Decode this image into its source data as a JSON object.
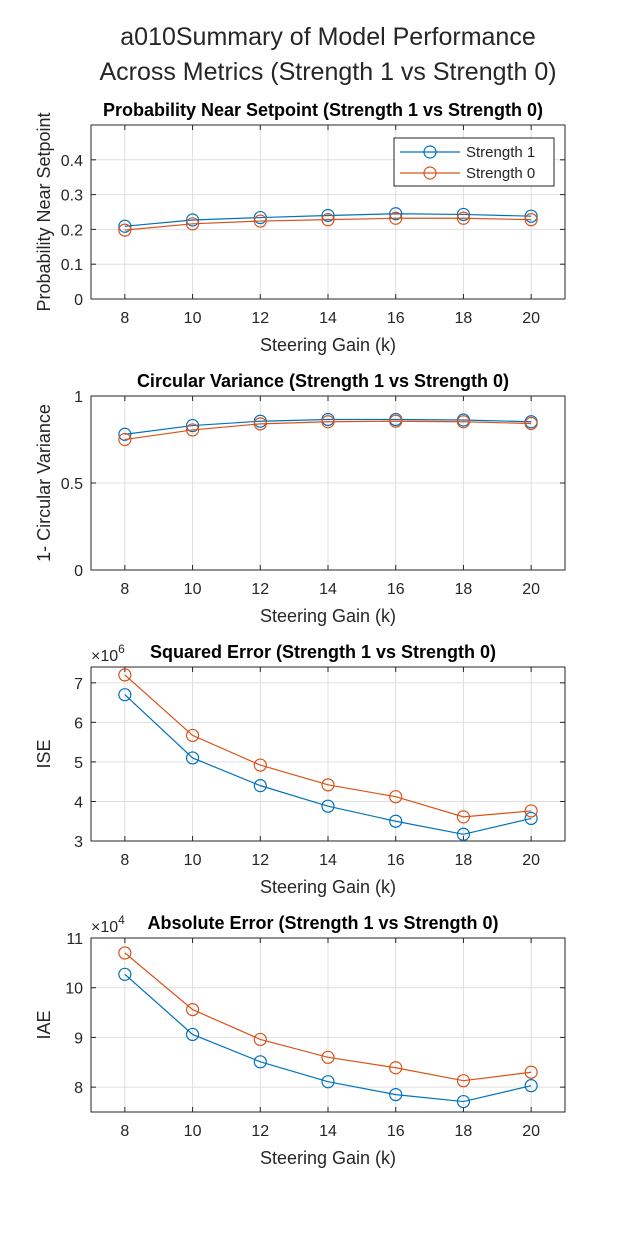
{
  "figure_title_line1": "a010Summary of Model Performance",
  "figure_title_line2": "Across Metrics (Strength 1 vs Strength 0)",
  "colors": {
    "strength1": "#0072BD",
    "strength0": "#D95319",
    "grid": "#dfdfdf",
    "axis": "#262626"
  },
  "chart_data": [
    {
      "type": "line",
      "title": "Probability Near Setpoint (Strength 1 vs Strength 0)",
      "xlabel": "Steering Gain (k)",
      "ylabel": "Probability Near Setpoint",
      "x": [
        8,
        10,
        12,
        14,
        16,
        18,
        20
      ],
      "xlim": [
        7,
        21
      ],
      "ylim": [
        0,
        0.5
      ],
      "xticks": [
        8,
        10,
        12,
        14,
        16,
        18,
        20
      ],
      "yticks": [
        0,
        0.1,
        0.2,
        0.3,
        0.4
      ],
      "ytick_labels": [
        "0",
        "0.1",
        "0.2",
        "0.3",
        "0.4"
      ],
      "exponent": "",
      "grid": true,
      "legend": "top-right",
      "series": [
        {
          "name": "Strength 1",
          "values": [
            0.209,
            0.227,
            0.234,
            0.24,
            0.245,
            0.243,
            0.238
          ]
        },
        {
          "name": "Strength 0",
          "values": [
            0.198,
            0.216,
            0.224,
            0.228,
            0.232,
            0.232,
            0.228
          ]
        }
      ]
    },
    {
      "type": "line",
      "title": "Circular Variance (Strength 1 vs Strength 0)",
      "xlabel": "Steering Gain (k)",
      "ylabel": "1- Circular Variance",
      "x": [
        8,
        10,
        12,
        14,
        16,
        18,
        20
      ],
      "xlim": [
        7,
        21
      ],
      "ylim": [
        0,
        1
      ],
      "xticks": [
        8,
        10,
        12,
        14,
        16,
        18,
        20
      ],
      "yticks": [
        0,
        0.5,
        1
      ],
      "ytick_labels": [
        "0",
        "0.5",
        "1"
      ],
      "exponent": "",
      "grid": true,
      "legend": "none",
      "series": [
        {
          "name": "Strength 1",
          "values": [
            0.78,
            0.83,
            0.855,
            0.865,
            0.865,
            0.862,
            0.852
          ]
        },
        {
          "name": "Strength 0",
          "values": [
            0.75,
            0.805,
            0.84,
            0.852,
            0.855,
            0.852,
            0.842
          ]
        }
      ]
    },
    {
      "type": "line",
      "title": "Squared Error (Strength 1 vs Strength 0)",
      "xlabel": "Steering Gain (k)",
      "ylabel": "ISE",
      "x": [
        8,
        10,
        12,
        14,
        16,
        18,
        20
      ],
      "xlim": [
        7,
        21
      ],
      "ylim": [
        3,
        7.4
      ],
      "xticks": [
        8,
        10,
        12,
        14,
        16,
        18,
        20
      ],
      "yticks": [
        3,
        4,
        5,
        6,
        7
      ],
      "ytick_labels": [
        "3",
        "4",
        "5",
        "6",
        "7"
      ],
      "exponent": "6",
      "grid": true,
      "legend": "none",
      "series": [
        {
          "name": "Strength 1",
          "values": [
            6.7,
            5.1,
            4.4,
            3.88,
            3.5,
            3.17,
            3.57
          ]
        },
        {
          "name": "Strength 0",
          "values": [
            7.2,
            5.67,
            4.92,
            4.42,
            4.12,
            3.61,
            3.76
          ]
        }
      ]
    },
    {
      "type": "line",
      "title": "Absolute Error (Strength 1 vs Strength 0)",
      "xlabel": "Steering Gain (k)",
      "ylabel": "IAE",
      "x": [
        8,
        10,
        12,
        14,
        16,
        18,
        20
      ],
      "xlim": [
        7,
        21
      ],
      "ylim": [
        7.5,
        11
      ],
      "xticks": [
        8,
        10,
        12,
        14,
        16,
        18,
        20
      ],
      "yticks": [
        8,
        9,
        10,
        11
      ],
      "ytick_labels": [
        "8",
        "9",
        "10",
        "11"
      ],
      "exponent": "4",
      "grid": true,
      "legend": "none",
      "series": [
        {
          "name": "Strength 1",
          "values": [
            10.27,
            9.06,
            8.51,
            8.11,
            7.85,
            7.71,
            8.03
          ]
        },
        {
          "name": "Strength 0",
          "values": [
            10.7,
            9.56,
            8.96,
            8.6,
            8.39,
            8.13,
            8.3
          ]
        }
      ]
    }
  ]
}
